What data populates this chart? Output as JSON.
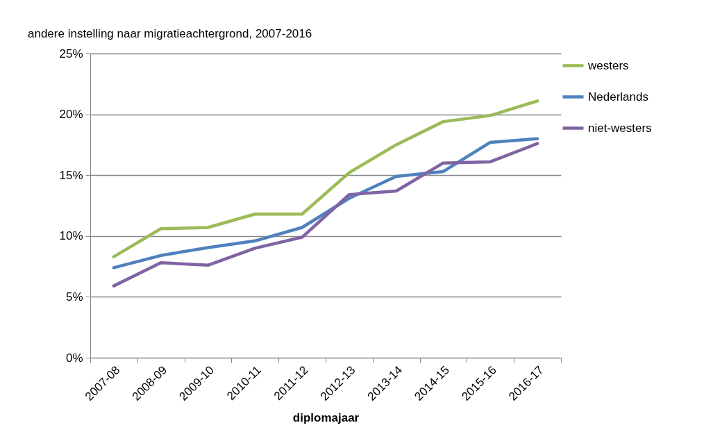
{
  "chart_data": {
    "type": "line",
    "title": "andere instelling naar migratieachtergrond, 2007-2016",
    "xlabel": "diplomajaar",
    "categories": [
      "2007-08",
      "2008-09",
      "2009-10",
      "2010-11",
      "2011-12",
      "2012-13",
      "2013-14",
      "2014-15",
      "2015-16",
      "2016-17"
    ],
    "series": [
      {
        "name": "westers",
        "color": "#9bbb59",
        "values": [
          8.3,
          10.6,
          10.7,
          11.8,
          11.8,
          15.2,
          17.5,
          19.4,
          19.9,
          21.1
        ]
      },
      {
        "name": "Nederlands",
        "color": "#4f81bd",
        "values": [
          7.4,
          8.4,
          9.05,
          9.6,
          10.7,
          13.1,
          14.9,
          15.3,
          17.7,
          18.0
        ]
      },
      {
        "name": "niet-westers",
        "color": "#8064a2",
        "values": [
          5.9,
          7.8,
          7.6,
          9.0,
          9.9,
          13.4,
          13.7,
          16.0,
          16.1,
          17.6
        ]
      }
    ],
    "ylim": [
      0,
      25
    ],
    "yticks": [
      {
        "value": 0,
        "label": "0%"
      },
      {
        "value": 5,
        "label": "5%"
      },
      {
        "value": 10,
        "label": "10%"
      },
      {
        "value": 15,
        "label": "15%"
      },
      {
        "value": 20,
        "label": "20%"
      },
      {
        "value": 25,
        "label": "25%"
      }
    ],
    "grid": "y",
    "legend": "right",
    "marker": "none",
    "line_style": "solid"
  }
}
